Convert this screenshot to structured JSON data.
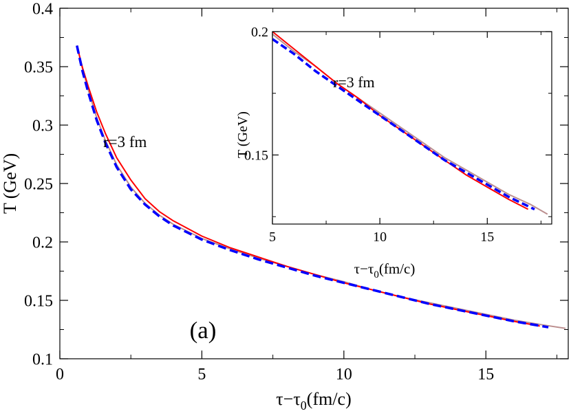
{
  "chart_data": [
    {
      "type": "line",
      "panel_label": "(a)",
      "annotation": "r=3 fm",
      "xlabel": "τ−τ0(fm/c)",
      "xlabel_main": "τ−τ",
      "xlabel_sub": "0",
      "xlabel_tail": "(fm/c)",
      "ylabel": "T (GeV)",
      "xlim": [
        0,
        17.9
      ],
      "ylim": [
        0.1,
        0.4
      ],
      "xticks": [
        0,
        5,
        10,
        15
      ],
      "xtick_labels": [
        "0",
        "5",
        "10",
        "15"
      ],
      "yticks": [
        0.1,
        0.15,
        0.2,
        0.25,
        0.3,
        0.35,
        0.4
      ],
      "ytick_labels": [
        "0.1",
        "0.15",
        "0.2",
        "0.25",
        "0.3",
        "0.35",
        "0.4"
      ],
      "grid": false,
      "series": [
        {
          "color": "#bc8f8f",
          "style": "solid",
          "x": [
            0.6,
            0.8,
            1.0,
            1.3,
            1.6,
            2.0,
            2.5,
            3.0,
            3.5,
            4.0,
            5.0,
            6.0,
            7.0,
            8.0,
            9.0,
            10.0,
            11.0,
            12.0,
            13.0,
            14.0,
            15.0,
            16.0,
            17.0,
            17.8
          ],
          "y": [
            0.368,
            0.348,
            0.33,
            0.306,
            0.287,
            0.266,
            0.247,
            0.233,
            0.223,
            0.215,
            0.203,
            0.194,
            0.186,
            0.179,
            0.172,
            0.166,
            0.159,
            0.153,
            0.148,
            0.143,
            0.138,
            0.133,
            0.129,
            0.126
          ]
        },
        {
          "color": "#ff0000",
          "style": "solid",
          "x": [
            0.6,
            0.8,
            1.0,
            1.3,
            1.6,
            2.0,
            2.5,
            3.0,
            3.5,
            4.0,
            5.0,
            6.0,
            7.0,
            8.0,
            9.0,
            10.0,
            11.0,
            12.0,
            13.0,
            14.0,
            15.0,
            16.0,
            16.9
          ],
          "y": [
            0.368,
            0.349,
            0.333,
            0.311,
            0.293,
            0.272,
            0.253,
            0.237,
            0.226,
            0.218,
            0.205,
            0.195,
            0.187,
            0.179,
            0.172,
            0.165,
            0.159,
            0.153,
            0.147,
            0.142,
            0.137,
            0.132,
            0.128
          ]
        },
        {
          "color": "#0000ff",
          "style": "dashed",
          "x": [
            0.6,
            0.8,
            1.0,
            1.3,
            1.6,
            2.0,
            2.5,
            3.0,
            3.5,
            4.0,
            5.0,
            6.0,
            7.0,
            8.0,
            9.0,
            10.0,
            11.0,
            12.0,
            13.0,
            14.0,
            15.0,
            16.0,
            17.2
          ],
          "y": [
            0.368,
            0.346,
            0.328,
            0.304,
            0.285,
            0.264,
            0.245,
            0.232,
            0.222,
            0.214,
            0.202,
            0.193,
            0.185,
            0.178,
            0.171,
            0.165,
            0.159,
            0.153,
            0.147,
            0.142,
            0.137,
            0.132,
            0.127
          ]
        }
      ]
    },
    {
      "type": "line",
      "inset": true,
      "annotation": "r=3 fm",
      "xlabel": "τ−τ0(fm/c)",
      "xlabel_main": "τ−τ",
      "xlabel_sub": "0",
      "xlabel_tail": "(fm/c)",
      "ylabel": "T (GeV)",
      "xlim": [
        5,
        18
      ],
      "ylim": [
        0.122,
        0.2
      ],
      "xticks": [
        5,
        10,
        15
      ],
      "xtick_labels": [
        "5",
        "10",
        "15"
      ],
      "yticks": [
        0.15,
        0.2
      ],
      "ytick_labels": [
        "0.15",
        "0.2"
      ],
      "grid": false,
      "series": [
        {
          "color": "#bc8f8f",
          "style": "solid",
          "x": [
            5.0,
            6.0,
            7.0,
            8.0,
            9.0,
            10.0,
            11.0,
            12.0,
            13.0,
            14.0,
            15.0,
            16.0,
            17.0,
            17.8
          ],
          "y": [
            0.199,
            0.192,
            0.186,
            0.179,
            0.173,
            0.167,
            0.161,
            0.155,
            0.149,
            0.144,
            0.139,
            0.134,
            0.13,
            0.126
          ]
        },
        {
          "color": "#ff0000",
          "style": "solid",
          "x": [
            5.0,
            6.0,
            7.0,
            8.0,
            9.0,
            10.0,
            11.0,
            12.0,
            13.0,
            14.0,
            15.0,
            16.0,
            16.9
          ],
          "y": [
            0.2,
            0.193,
            0.186,
            0.179,
            0.173,
            0.166,
            0.16,
            0.154,
            0.148,
            0.142,
            0.137,
            0.132,
            0.128
          ]
        },
        {
          "color": "#0000ff",
          "style": "dashed",
          "x": [
            5.0,
            6.0,
            7.0,
            8.0,
            9.0,
            10.0,
            11.0,
            12.0,
            13.0,
            14.0,
            15.0,
            16.0,
            17.2
          ],
          "y": [
            0.197,
            0.191,
            0.184,
            0.178,
            0.172,
            0.166,
            0.16,
            0.154,
            0.148,
            0.143,
            0.138,
            0.133,
            0.128
          ]
        }
      ]
    }
  ]
}
